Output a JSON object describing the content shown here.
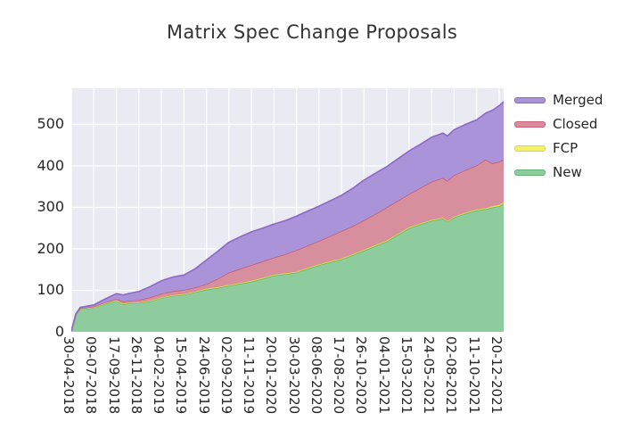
{
  "title": "Matrix Spec Change Proposals",
  "plot": {
    "bg_color": "#e9eaf2",
    "grid_color": "#ffffff",
    "figure_bg": "#ffffff"
  },
  "legend": {
    "entries": [
      {
        "label": "Merged",
        "fill": "#ab93d9",
        "edge": "#8c68c8"
      },
      {
        "label": "Closed",
        "fill": "#d88f9d",
        "edge": "#c85c74"
      },
      {
        "label": "FCP",
        "fill": "#f3f06d",
        "edge": "#dcd83c"
      },
      {
        "label": "New",
        "fill": "#8ecb9d",
        "edge": "#5fb573"
      }
    ]
  },
  "chart_data": {
    "type": "area",
    "stacked": true,
    "title": "Matrix Spec Change Proposals",
    "xlabel": "",
    "ylabel": "",
    "grid": true,
    "legend_position": "outside upper right",
    "x_unit": "weeks since 30-04-2018 (weekly data, one tick every 10 weeks)",
    "xlim_weeks": [
      0,
      192
    ],
    "ylim": [
      0,
      587
    ],
    "y_ticks": [
      0,
      100,
      200,
      300,
      400,
      500
    ],
    "x_tick_weeks": [
      0,
      10,
      20,
      30,
      40,
      50,
      60,
      70,
      80,
      90,
      100,
      110,
      120,
      130,
      140,
      150,
      160,
      170,
      180,
      190
    ],
    "x_tick_labels": [
      "30-04-2018",
      "09-07-2018",
      "17-09-2018",
      "26-11-2018",
      "04-02-2019",
      "15-04-2019",
      "24-06-2019",
      "02-09-2019",
      "11-11-2019",
      "20-01-2020",
      "30-03-2020",
      "08-06-2020",
      "17-08-2020",
      "26-10-2020",
      "04-01-2021",
      "15-03-2021",
      "24-05-2021",
      "02-08-2021",
      "11-10-2021",
      "20-12-2021"
    ],
    "x": [
      0,
      2,
      4,
      10,
      15,
      20,
      23,
      26,
      30,
      35,
      40,
      45,
      50,
      55,
      60,
      65,
      70,
      75,
      80,
      85,
      90,
      95,
      100,
      105,
      110,
      115,
      120,
      125,
      130,
      135,
      140,
      145,
      150,
      155,
      160,
      165,
      167,
      170,
      175,
      180,
      184,
      187,
      190,
      192
    ],
    "series": [
      {
        "name": "New",
        "stack_order": 1,
        "fill": "#8ecb9d",
        "edge": "#5fb573",
        "values": [
          2,
          40,
          55,
          58,
          68,
          75,
          67,
          69,
          70,
          74,
          82,
          87,
          90,
          96,
          102,
          106,
          111,
          116,
          121,
          128,
          136,
          139,
          143,
          152,
          161,
          168,
          175,
          185,
          196,
          207,
          218,
          234,
          250,
          259,
          268,
          273,
          265,
          276,
          285,
          293,
          296,
          300,
          303,
          309
        ]
      },
      {
        "name": "FCP",
        "stack_order": 2,
        "fill": "#f3f06d",
        "edge": "#dcd83c",
        "values": [
          0,
          1,
          1,
          1,
          1,
          1,
          1,
          1,
          1,
          1,
          1,
          1,
          1,
          1,
          2,
          2,
          2,
          2,
          2,
          2,
          2,
          2,
          2,
          2,
          2,
          2,
          2,
          2,
          2,
          2,
          2,
          2,
          2,
          2,
          2,
          2,
          2,
          2,
          2,
          2,
          2,
          3,
          3,
          3
        ]
      },
      {
        "name": "Closed",
        "stack_order": 3,
        "fill": "#d88f9d",
        "edge": "#c85c74",
        "values": [
          0,
          1,
          1,
          2,
          2,
          3,
          5,
          5,
          6,
          8,
          9,
          10,
          10,
          10,
          11,
          20,
          30,
          34,
          38,
          40,
          41,
          46,
          52,
          54,
          56,
          61,
          66,
          68,
          71,
          75,
          80,
          80,
          80,
          86,
          92,
          96,
          97,
          100,
          103,
          106,
          117,
          103,
          104,
          103
        ]
      },
      {
        "name": "Merged",
        "stack_order": 4,
        "fill": "#ab93d9",
        "edge": "#8c68c8",
        "values": [
          0,
          1,
          2,
          4,
          8,
          13,
          16,
          18,
          20,
          26,
          31,
          34,
          36,
          45,
          58,
          66,
          73,
          77,
          80,
          80,
          81,
          81,
          82,
          83,
          84,
          85,
          86,
          91,
          97,
          98,
          98,
          101,
          104,
          105,
          107,
          108,
          108,
          109,
          110,
          110,
          112,
          128,
          135,
          140
        ]
      }
    ]
  }
}
